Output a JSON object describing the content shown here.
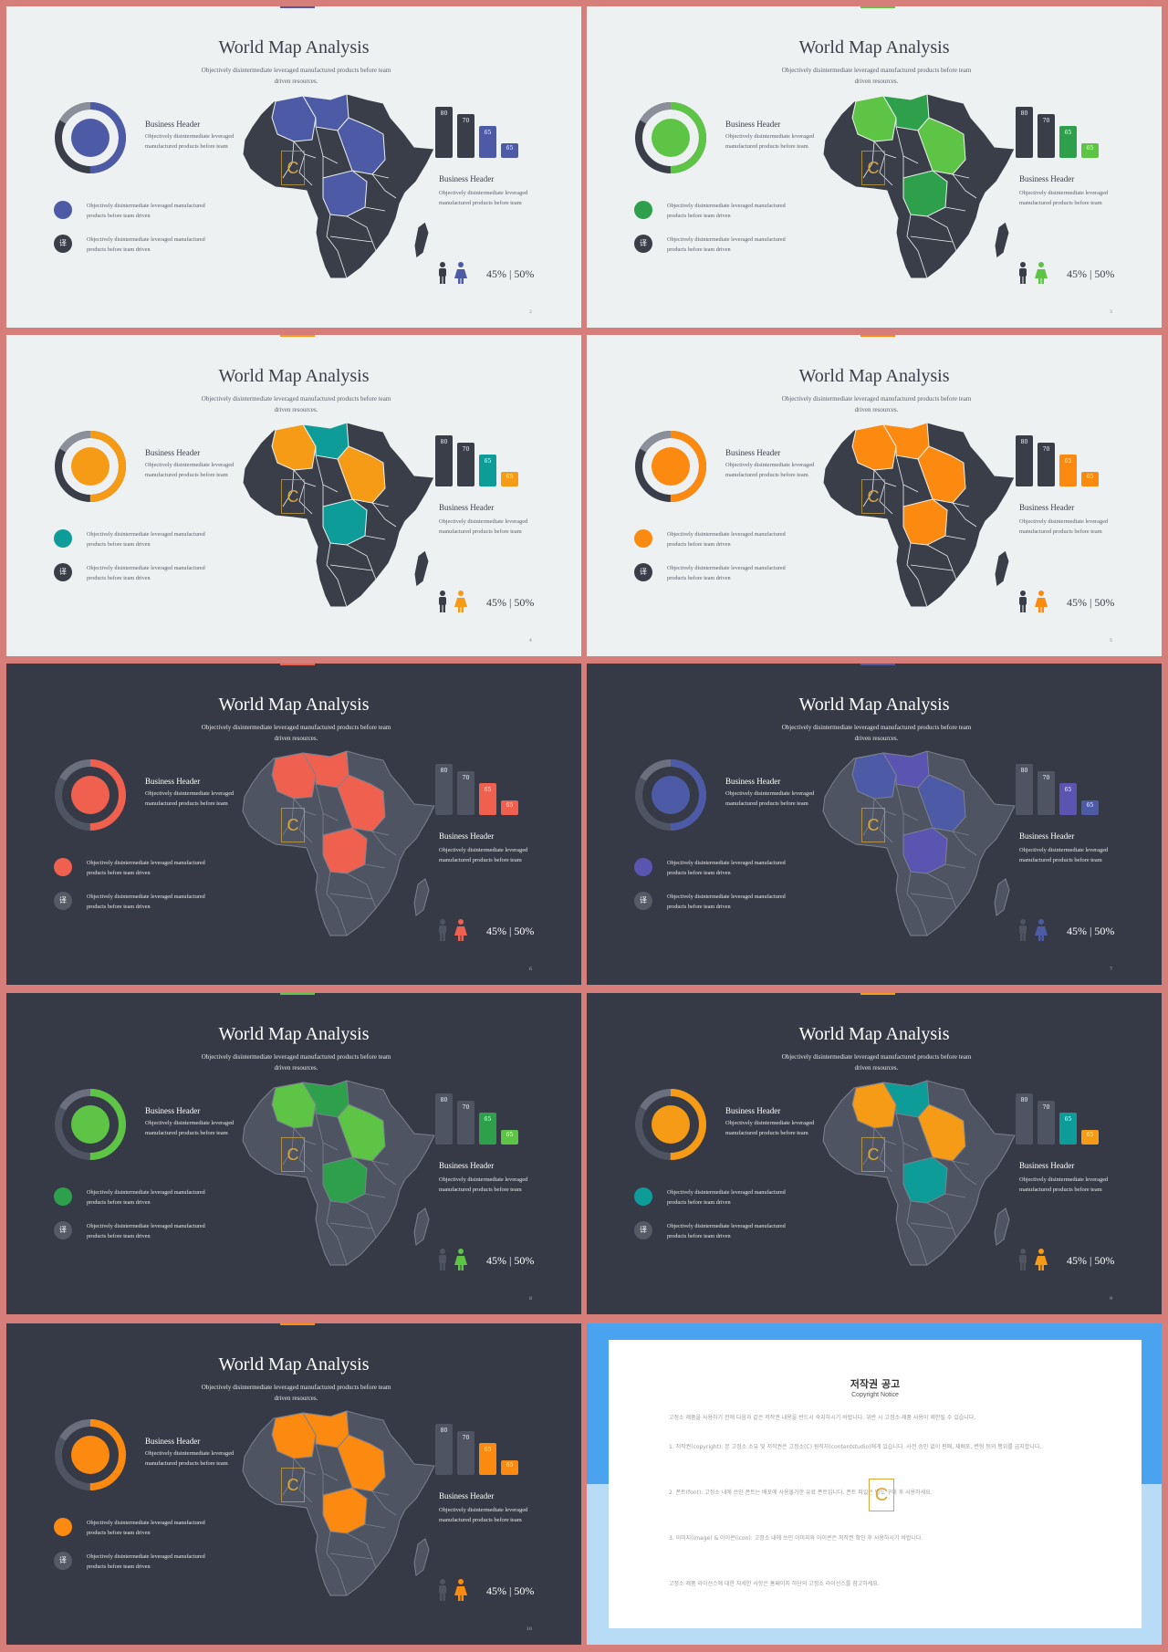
{
  "slides": [
    {
      "theme": "light",
      "accent": "#4d5aa6",
      "accent2": "#4d5aa6",
      "dot2": "#3a3e48",
      "topmark": "#4d5aa6",
      "map_alt": "#4d5aa6",
      "bar_colors": [
        "#3a3e48",
        "#3a3e48",
        "#4d5aa6",
        "#4d5aa6"
      ],
      "page": "2"
    },
    {
      "theme": "light",
      "accent": "#5ec445",
      "accent2": "#2ea04c",
      "dot2": "#3a3e48",
      "topmark": "#5ec445",
      "map_alt": "#2ea04c",
      "bar_colors": [
        "#3a3e48",
        "#3a3e48",
        "#2ea04c",
        "#5ec445"
      ],
      "page": "3"
    },
    {
      "theme": "light",
      "accent": "#f59b16",
      "accent2": "#0e9c99",
      "dot2": "#3a3e48",
      "topmark": "#f59b16",
      "map_alt": "#0e9c99",
      "bar_colors": [
        "#3a3e48",
        "#3a3e48",
        "#0e9c99",
        "#f59b16"
      ],
      "page": "4"
    },
    {
      "theme": "light",
      "accent": "#fc8a10",
      "accent2": "#fc8a10",
      "dot2": "#3a3e48",
      "topmark": "#fc8a10",
      "map_alt": "#fc8a10",
      "bar_colors": [
        "#3a3e48",
        "#3a3e48",
        "#fc8a10",
        "#fc8a10"
      ],
      "page": "5"
    },
    {
      "theme": "dark",
      "accent": "#f0604f",
      "accent2": "#f0604f",
      "dot2": "#555a66",
      "topmark": "#f0604f",
      "map_alt": "#f0604f",
      "bar_colors": [
        "#4f5462",
        "#4f5462",
        "#f0604f",
        "#f0604f"
      ],
      "page": "6"
    },
    {
      "theme": "dark",
      "accent": "#4d5aa6",
      "accent2": "#5a55b0",
      "dot2": "#555a66",
      "topmark": "#4d5aa6",
      "map_alt": "#5a55b0",
      "bar_colors": [
        "#4f5462",
        "#4f5462",
        "#5a55b0",
        "#4d5aa6"
      ],
      "page": "7"
    },
    {
      "theme": "dark",
      "accent": "#5ec445",
      "accent2": "#2ea04c",
      "dot2": "#555a66",
      "topmark": "#5ec445",
      "map_alt": "#2ea04c",
      "bar_colors": [
        "#4f5462",
        "#4f5462",
        "#2ea04c",
        "#5ec445"
      ],
      "page": "8"
    },
    {
      "theme": "dark",
      "accent": "#f59b16",
      "accent2": "#0e9c99",
      "dot2": "#555a66",
      "topmark": "#f59b16",
      "map_alt": "#0e9c99",
      "bar_colors": [
        "#4f5462",
        "#4f5462",
        "#0e9c99",
        "#f59b16"
      ],
      "page": "9"
    },
    {
      "theme": "dark",
      "accent": "#fc8a10",
      "accent2": "#fc8a10",
      "dot2": "#555a66",
      "topmark": "#fc8a10",
      "map_alt": "#fc8a10",
      "bar_colors": [
        "#4f5462",
        "#4f5462",
        "#fc8a10",
        "#fc8a10"
      ],
      "page": "10"
    }
  ],
  "common": {
    "title": "World Map Analysis",
    "subtitle": "Objectively disintermediate leveraged manufactured products before team driven resources.",
    "business_header": "Business Header",
    "business_desc": "Objectively disintermediate leveraged manufactured products before team",
    "list_desc": "Objectively disintermediate leveraged manufactured products before team driven",
    "bars": [
      80,
      70,
      65,
      65
    ],
    "percent_text": "45% | 50%",
    "icon_glyph": "译"
  },
  "copyright": {
    "title": "저작권 공고",
    "subtitle": "Copyright Notice",
    "paras": [
      "고정소 제품을 사용하기 전에 다음과 같은 저작권 내용을 반드시 숙지하시기 바랍니다. 위반 시 고정소 제품 사용이 제한될 수 있습니다.",
      "1. 저작권(copyright): 본 고정소 소유 및 저작권은 고정소(C) 원작자(contentstudio)에게 있습니다. 사전 승인 없이 판매, 재배포, 변형 등의 행위를 금지합니다.",
      "2. 폰트(font): 고정소 내에 쓰인 폰트는 배포에 사용불가한 유료 폰트입니다. 폰트 파일은 별도 구매 후 사용하세요.",
      "3. 이미지(image) & 아이콘(icon): 고정소 내에 쓰인 이미지와 아이콘은 저작권 확인 후 사용하시기 바랍니다.",
      "고정소 제품 라이선스에 대한 자세한 사항은 홈페이지 하단의 고정소 라이선스를 참고하세요."
    ],
    "logo": "C"
  }
}
